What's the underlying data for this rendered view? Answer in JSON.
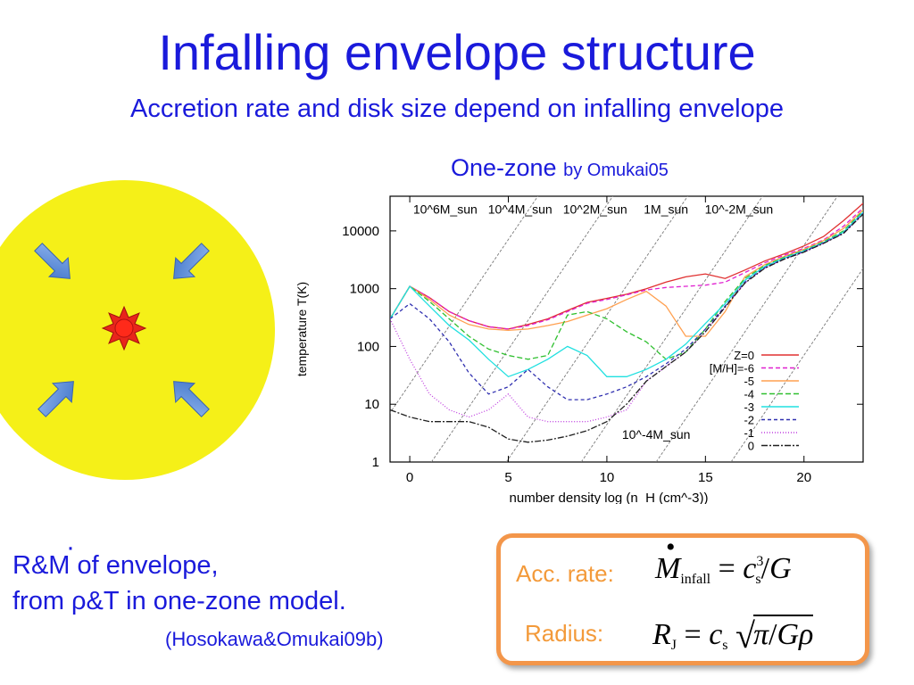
{
  "slide": {
    "title": "Infalling envelope structure",
    "subtitle": "Accretion rate and disk size depend on infalling envelope",
    "onezone_main": "One-zone",
    "onezone_by": "by Omukai05",
    "rm_dot": "·",
    "rm_line1": "R&M of envelope,",
    "rm_line2": "from ρ&T in one-zone model.",
    "citation": "(Hosokawa&Omukai09b)",
    "acc_label": "Acc. rate:",
    "radius_label": "Radius:",
    "eq1": {
      "lhs": "M",
      "lhs_sub": "infall",
      "eq": "=",
      "c": "c",
      "c_sub": "s",
      "c_sup": "3",
      "slash": "/",
      "G": "G"
    },
    "eq2": {
      "lhs": "R",
      "lhs_sub": "J",
      "eq": "=",
      "c": "c",
      "c_sub": "s",
      "pi": "π",
      "slash": "/",
      "Grho": "Gρ"
    }
  },
  "colors": {
    "title": "#1a1adb",
    "box_border": "#f3964a",
    "label": "#f39a3a",
    "sphere": "#f5f018",
    "arrow": "#5b8fd9",
    "star": "#e8261b"
  },
  "icons": [
    "arrow-icon",
    "star-icon"
  ],
  "chart_data": {
    "type": "line",
    "xlabel": "number density log (n_H (cm^-3))",
    "ylabel": "temperature T(K)",
    "xlim": [
      -1,
      23
    ],
    "ylim_log10": [
      0,
      4.6
    ],
    "ylog": true,
    "xticks": [
      0,
      5,
      10,
      15,
      20
    ],
    "xtick_labels": [
      "0",
      "5",
      "10",
      "15",
      "20"
    ],
    "yticks": [
      1,
      10,
      100,
      1000,
      10000
    ],
    "ytick_labels": [
      "1",
      "10",
      "100",
      "1000",
      "10000"
    ],
    "jeans_mass_labels": [
      {
        "text": "10^6M_sun",
        "x": 1.8,
        "y": 20000
      },
      {
        "text": "10^4M_sun",
        "x": 5.6,
        "y": 20000
      },
      {
        "text": "10^2M_sun",
        "x": 9.4,
        "y": 20000
      },
      {
        "text": "1M_sun",
        "x": 13.0,
        "y": 20000
      },
      {
        "text": "10^-2M_sun",
        "x": 16.7,
        "y": 20000
      },
      {
        "text": "10^-4M_sun",
        "x": 12.5,
        "y": 2.5
      }
    ],
    "jeans_lines_x_at_T1": [
      -2.7,
      1.1,
      4.9,
      8.7,
      12.5,
      16.3
    ],
    "legend_position": "bottom-right",
    "series": [
      {
        "name": "Z=0",
        "color": "#e03030",
        "dash": "",
        "x": [
          -1,
          0,
          1,
          2,
          3,
          4,
          5,
          6,
          7,
          8,
          9,
          10,
          11,
          12,
          13,
          14,
          15,
          16,
          17,
          18,
          19,
          20,
          21,
          22,
          23
        ],
        "y": [
          300,
          1100,
          700,
          400,
          280,
          220,
          200,
          240,
          300,
          420,
          580,
          680,
          800,
          1000,
          1300,
          1600,
          1800,
          1500,
          2100,
          3000,
          4000,
          5500,
          8000,
          15000,
          30000
        ]
      },
      {
        "name": "[M/H]=-6",
        "color": "#e020d0",
        "dash": "5,3",
        "x": [
          -1,
          0,
          1,
          2,
          3,
          4,
          5,
          6,
          7,
          8,
          9,
          10,
          11,
          12,
          13,
          14,
          15,
          16,
          17,
          18,
          19,
          20,
          21,
          22,
          23
        ],
        "y": [
          300,
          1100,
          700,
          400,
          280,
          220,
          200,
          230,
          290,
          400,
          560,
          650,
          780,
          950,
          1050,
          1100,
          1150,
          1300,
          1900,
          2800,
          3800,
          5000,
          7000,
          12000,
          25000
        ]
      },
      {
        "name": "-5",
        "color": "#ffa050",
        "dash": "",
        "x": [
          -1,
          0,
          1,
          2,
          3,
          4,
          5,
          6,
          7,
          8,
          9,
          10,
          11,
          12,
          13,
          14,
          15,
          16,
          17,
          18,
          19,
          20,
          21,
          22,
          23
        ],
        "y": [
          300,
          1100,
          650,
          350,
          240,
          200,
          190,
          200,
          230,
          270,
          350,
          450,
          650,
          900,
          500,
          150,
          150,
          400,
          1600,
          2600,
          3600,
          4800,
          6800,
          11000,
          23000
        ]
      },
      {
        "name": "-4",
        "color": "#30c030",
        "dash": "6,3",
        "x": [
          -1,
          0,
          1,
          2,
          3,
          4,
          5,
          6,
          7,
          8,
          9,
          10,
          11,
          12,
          13,
          14,
          15,
          16,
          17,
          18,
          19,
          20,
          21,
          22,
          23
        ],
        "y": [
          300,
          1100,
          600,
          300,
          150,
          90,
          70,
          60,
          70,
          350,
          400,
          300,
          180,
          120,
          60,
          80,
          200,
          600,
          1500,
          2500,
          3500,
          4600,
          6500,
          10000,
          22000
        ]
      },
      {
        "name": "-3",
        "color": "#20e0e0",
        "dash": "",
        "x": [
          -1,
          0,
          1,
          2,
          3,
          4,
          5,
          6,
          7,
          8,
          9,
          10,
          11,
          12,
          13,
          14,
          15,
          16,
          17,
          18,
          19,
          20,
          21,
          22,
          23
        ],
        "y": [
          300,
          1100,
          500,
          230,
          130,
          60,
          30,
          40,
          60,
          100,
          70,
          30,
          30,
          40,
          60,
          110,
          250,
          550,
          1400,
          2400,
          3400,
          4500,
          6300,
          9500,
          21000
        ]
      },
      {
        "name": "-2",
        "color": "#3030b0",
        "dash": "4,3",
        "x": [
          -1,
          0,
          1,
          2,
          3,
          4,
          5,
          6,
          7,
          8,
          9,
          10,
          11,
          12,
          13,
          14,
          15,
          16,
          17,
          18,
          19,
          20,
          21,
          22,
          23
        ],
        "y": [
          300,
          550,
          300,
          120,
          35,
          15,
          20,
          40,
          20,
          12,
          12,
          15,
          20,
          30,
          50,
          90,
          200,
          500,
          1300,
          2300,
          3300,
          4400,
          6200,
          9200,
          20000
        ]
      },
      {
        "name": "-1",
        "color": "#c040e0",
        "dash": "1,2",
        "x": [
          -1,
          0,
          1,
          2,
          3,
          4,
          5,
          6,
          7,
          8,
          9,
          10,
          11,
          12,
          13,
          14,
          15,
          16,
          17,
          18,
          19,
          20,
          21,
          22,
          23
        ],
        "y": [
          300,
          60,
          15,
          8,
          6,
          8,
          15,
          6,
          5,
          5,
          5,
          6,
          8,
          25,
          45,
          80,
          180,
          480,
          1250,
          2250,
          3250,
          4300,
          6100,
          9000,
          19500
        ]
      },
      {
        "name": "0",
        "color": "#202020",
        "dash": "7,2,2,2",
        "x": [
          -1,
          0,
          1,
          2,
          3,
          4,
          5,
          6,
          7,
          8,
          9,
          10,
          11,
          12,
          13,
          14,
          15,
          16,
          17,
          18,
          19,
          20,
          21,
          22,
          23
        ],
        "y": [
          8,
          6,
          5,
          5,
          5,
          4,
          2.5,
          2.2,
          2.4,
          2.8,
          3.5,
          5,
          10,
          25,
          45,
          80,
          180,
          480,
          1250,
          2250,
          3250,
          4300,
          6100,
          9000,
          19500
        ]
      }
    ]
  }
}
